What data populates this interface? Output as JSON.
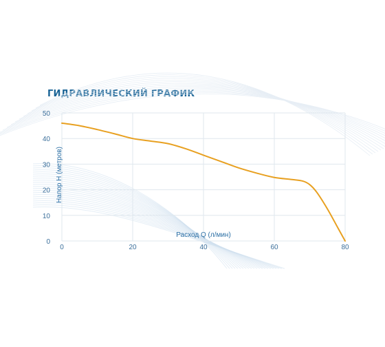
{
  "chart_data": {
    "type": "line",
    "title": "ГИДРАВЛИЧЕСКИЙ ГРАФИК",
    "xlabel": "Расход Q (л/мин)",
    "ylabel": "Напор Н (метров)",
    "xlim": [
      0,
      80
    ],
    "ylim": [
      0,
      50
    ],
    "x_ticks": [
      "0",
      "20",
      "40",
      "60",
      "80"
    ],
    "y_ticks": [
      "0",
      "10",
      "20",
      "30",
      "40",
      "50"
    ],
    "grid": true,
    "colors": {
      "line": "#e8a020",
      "title": "#1a6496",
      "axis": "#3a6e9a",
      "grid": "#dfe7ee"
    },
    "series": [
      {
        "x": [
          0,
          5,
          10,
          15,
          20,
          25,
          30,
          35,
          40,
          45,
          50,
          55,
          60,
          65,
          68,
          70,
          72,
          75,
          78,
          80
        ],
        "values": [
          46,
          45,
          43.5,
          41.8,
          40,
          39,
          38,
          36,
          33.5,
          31,
          28.5,
          26.5,
          24.8,
          24,
          23.4,
          22,
          19,
          12.5,
          5,
          0
        ]
      }
    ]
  }
}
